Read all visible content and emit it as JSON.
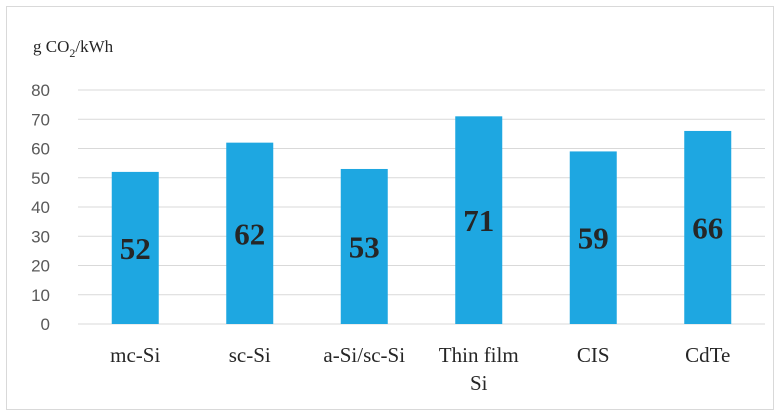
{
  "chart_data": {
    "type": "bar",
    "ylabel": "g CO2/kWh",
    "ylabel_parts": {
      "main": "g CO",
      "sub": "2",
      "tail": "/kWh"
    },
    "categories": [
      "mc-Si",
      "sc-Si",
      "a-Si/sc-Si",
      "Thin film Si",
      "CIS",
      "CdTe"
    ],
    "category_lines": [
      [
        "mc-Si"
      ],
      [
        "sc-Si"
      ],
      [
        "a-Si/sc-Si"
      ],
      [
        "Thin film",
        "Si"
      ],
      [
        "CIS"
      ],
      [
        "CdTe"
      ]
    ],
    "values": [
      52,
      62,
      53,
      71,
      59,
      66
    ],
    "data_labels": [
      "52",
      "62",
      "53",
      "71",
      "59",
      "66"
    ],
    "ylim": [
      0,
      80
    ],
    "yticks": [
      "0",
      "10",
      "20",
      "30",
      "40",
      "50",
      "60",
      "70",
      "80"
    ],
    "bar_color": "#1ea7e1",
    "grid": true,
    "grid_color": "#d9d9d9",
    "legend": "none"
  }
}
